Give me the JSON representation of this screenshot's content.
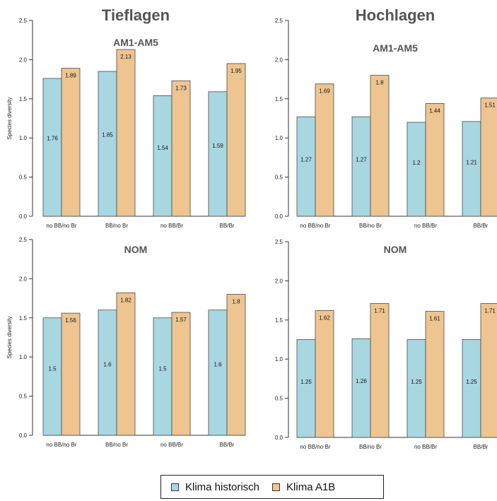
{
  "colors": {
    "historic": "#a8d7e2",
    "a1b": "#eec590",
    "bar_edge": "#4a4a4a",
    "axis": "#333333"
  },
  "column_titles": [
    "Tieflagen",
    "Hochlagen"
  ],
  "legend": {
    "historic_label": "Klima historisch",
    "a1b_label": "Klima A1B"
  },
  "chart_data": [
    {
      "type": "bar",
      "title": "AM1-AM5",
      "column": "Tieflagen",
      "ylabel": "Species diversity",
      "ylim": [
        0,
        2.5
      ],
      "yticks": [
        "0.0",
        "0.5",
        "1.0",
        "1.5",
        "2.0",
        "2.5"
      ],
      "categories": [
        "no BB/no Br",
        "BB/no Br",
        "no BB/Br",
        "BB/Br"
      ],
      "series": [
        {
          "name": "Klima historisch",
          "values": [
            1.76,
            1.85,
            1.54,
            1.59
          ],
          "labels": [
            "1.76",
            "1.85",
            "1.54",
            "1.59"
          ]
        },
        {
          "name": "Klima A1B",
          "values": [
            1.89,
            2.13,
            1.73,
            1.95
          ],
          "labels": [
            "1.89",
            "2.13",
            "1.73",
            "1.95"
          ]
        }
      ]
    },
    {
      "type": "bar",
      "title": "AM1-AM5",
      "column": "Hochlagen",
      "ylabel": "",
      "ylim": [
        0,
        2.5
      ],
      "yticks": [
        "0.0",
        "0.5",
        "1.0",
        "1.5",
        "2.0",
        "2.5"
      ],
      "categories": [
        "no BB/no Br",
        "BB/no Br",
        "no BB/Br",
        "BB/Br"
      ],
      "series": [
        {
          "name": "Klima historisch",
          "values": [
            1.27,
            1.27,
            1.2,
            1.21
          ],
          "labels": [
            "1.27",
            "1.27",
            "1.2",
            "1.21"
          ]
        },
        {
          "name": "Klima A1B",
          "values": [
            1.69,
            1.8,
            1.44,
            1.51
          ],
          "labels": [
            "1.69",
            "1.8",
            "1.44",
            "1.51"
          ]
        }
      ]
    },
    {
      "type": "bar",
      "title": "NOM",
      "column": "Tieflagen",
      "ylabel": "Species diversity",
      "ylim": [
        0,
        2.5
      ],
      "yticks": [
        "0.0",
        "0.5",
        "1.0",
        "1.5",
        "2.0",
        "2.5"
      ],
      "categories": [
        "no BB/no Br",
        "BB/no Br",
        "no BB/Br",
        "BB/Br"
      ],
      "series": [
        {
          "name": "Klima historisch",
          "values": [
            1.5,
            1.6,
            1.5,
            1.6
          ],
          "labels": [
            "1.5",
            "1.6",
            "1.5",
            "1.6"
          ]
        },
        {
          "name": "Klima A1B",
          "values": [
            1.56,
            1.82,
            1.57,
            1.8
          ],
          "labels": [
            "1.56",
            "1.82",
            "1.57",
            "1.8"
          ]
        }
      ]
    },
    {
      "type": "bar",
      "title": "NOM",
      "column": "Hochlagen",
      "ylabel": "",
      "ylim": [
        0,
        2.5
      ],
      "yticks": [
        "0.0",
        "0.5",
        "1.0",
        "1.5",
        "2.0",
        "2.5"
      ],
      "categories": [
        "no BB/no Br",
        "BB/no Br",
        "no BB/Br",
        "BB/Br"
      ],
      "series": [
        {
          "name": "Klima historisch",
          "values": [
            1.25,
            1.26,
            1.25,
            1.25
          ],
          "labels": [
            "1.25",
            "1.26",
            "1.25",
            "1.25"
          ]
        },
        {
          "name": "Klima A1B",
          "values": [
            1.62,
            1.71,
            1.61,
            1.71
          ],
          "labels": [
            "1.62",
            "1.71",
            "1.61",
            "1.71"
          ]
        }
      ]
    }
  ]
}
